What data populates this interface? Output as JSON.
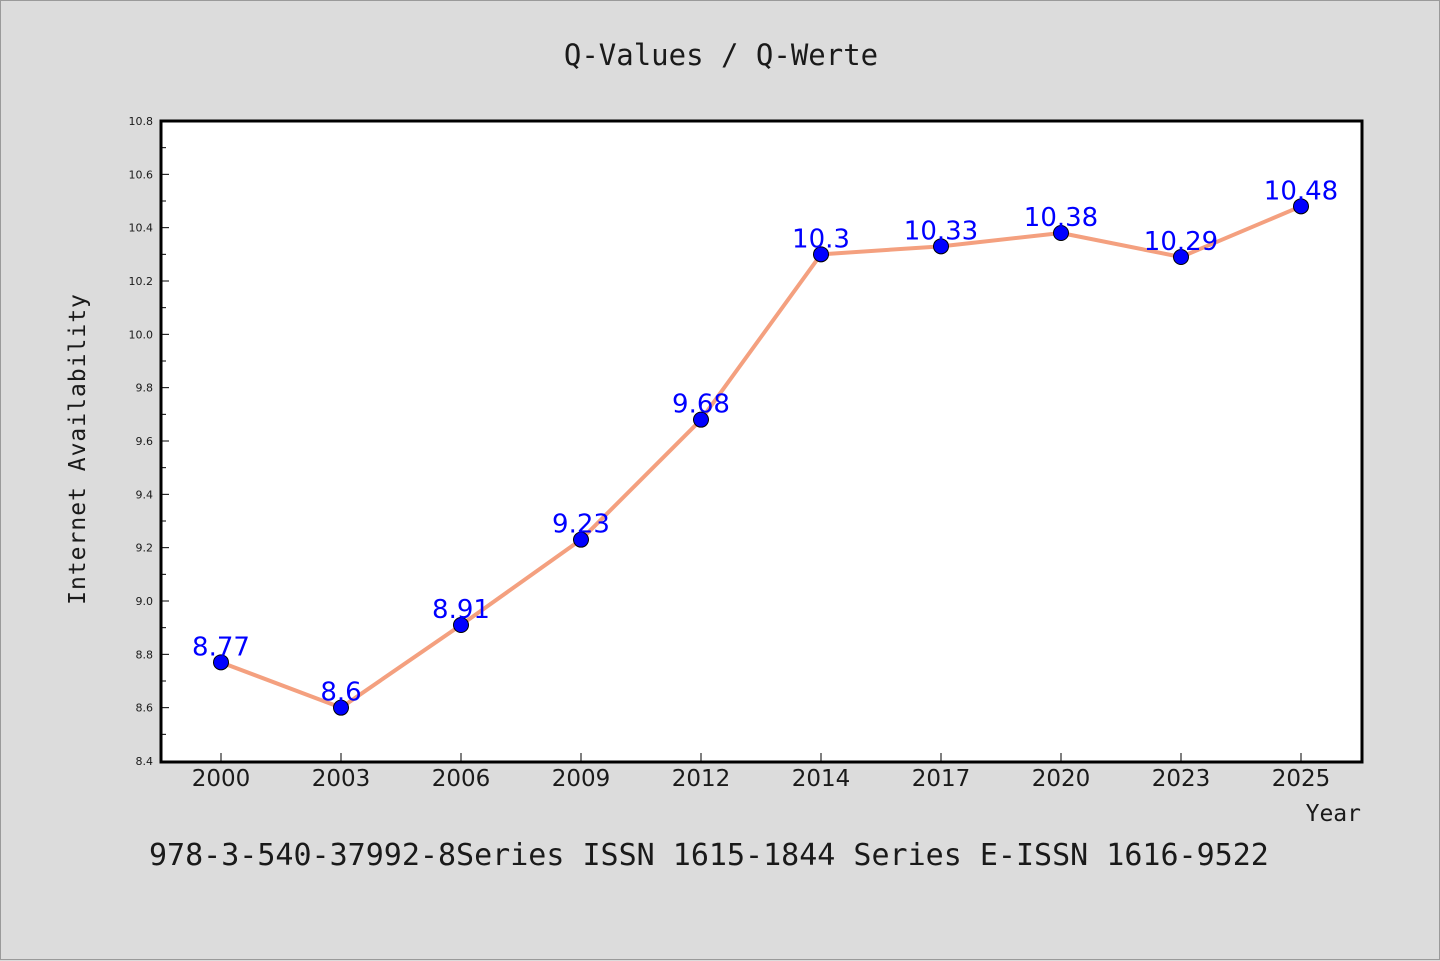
{
  "chart_data": {
    "type": "line",
    "title": "Q-Values / Q-Werte",
    "xlabel": "Year",
    "ylabel": "Internet Availability",
    "categories": [
      "2000",
      "2003",
      "2006",
      "2009",
      "2012",
      "2014",
      "2017",
      "2020",
      "2023",
      "2025"
    ],
    "series": [
      {
        "values": [
          8.77,
          8.6,
          8.91,
          9.23,
          9.68,
          10.3,
          10.33,
          10.38,
          10.29,
          10.48
        ],
        "data_labels": [
          "8.77",
          "8.6",
          "8.91",
          "9.23",
          "9.68",
          "10.3",
          "10.33",
          "10.38",
          "10.29",
          "10.48"
        ]
      }
    ],
    "ylim": [
      8.4,
      10.8
    ],
    "y_ticks": [
      "8.4",
      "8.6",
      "8.8",
      "9.0",
      "9.2",
      "9.4",
      "9.6",
      "9.8",
      "10.0",
      "10.2",
      "10.4",
      "10.6",
      "10.8"
    ],
    "grid": false,
    "legend": "none",
    "colors": {
      "line": "#f4a07f",
      "marker": "#0000ff",
      "data_label": "#0000ff",
      "background": "#dcdcdc",
      "plot_background": "#ffffff"
    }
  },
  "footer": "978-3-540-37992-8Series ISSN 1615-1844 Series E-ISSN 1616-9522"
}
